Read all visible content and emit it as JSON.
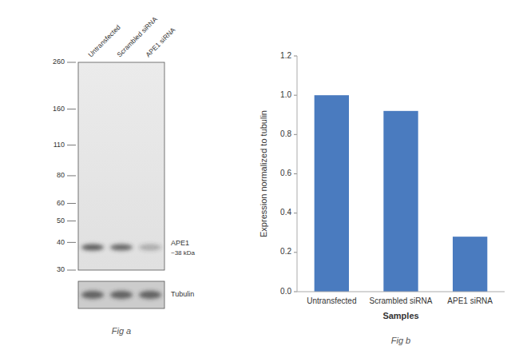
{
  "chart_data": [
    {
      "type": "blot",
      "title": "Fig a",
      "categories": [
        "Untransfected",
        "Scrambled siRNA",
        "APE1 siRNA"
      ],
      "ylim": [
        30,
        260
      ],
      "yticks": [
        260,
        160,
        110,
        80,
        60,
        50,
        40,
        30
      ],
      "log": "y",
      "annotations": [
        {
          "text": "APE1",
          "y": 38
        },
        {
          "text": "~38 kDa",
          "y": 38
        },
        {
          "text": "Tubulin"
        }
      ]
    },
    {
      "type": "bar",
      "title": "Fig b",
      "categories": [
        "Untransfected",
        "Scrambled siRNA",
        "APE1 siRNA"
      ],
      "values": [
        1.0,
        0.92,
        0.28
      ],
      "color": "#4a7bbf",
      "ylim": [
        0,
        1.2
      ],
      "yticks": [
        {
          "value": 0,
          "label": "0.0"
        },
        0.2,
        0.4,
        0.6,
        0.8,
        {
          "value": 1.0,
          "label": "1.0"
        },
        1.2
      ],
      "xlabel": "Samples",
      "ylabel": "Expression normalized to tubulin",
      "grid": false
    }
  ]
}
